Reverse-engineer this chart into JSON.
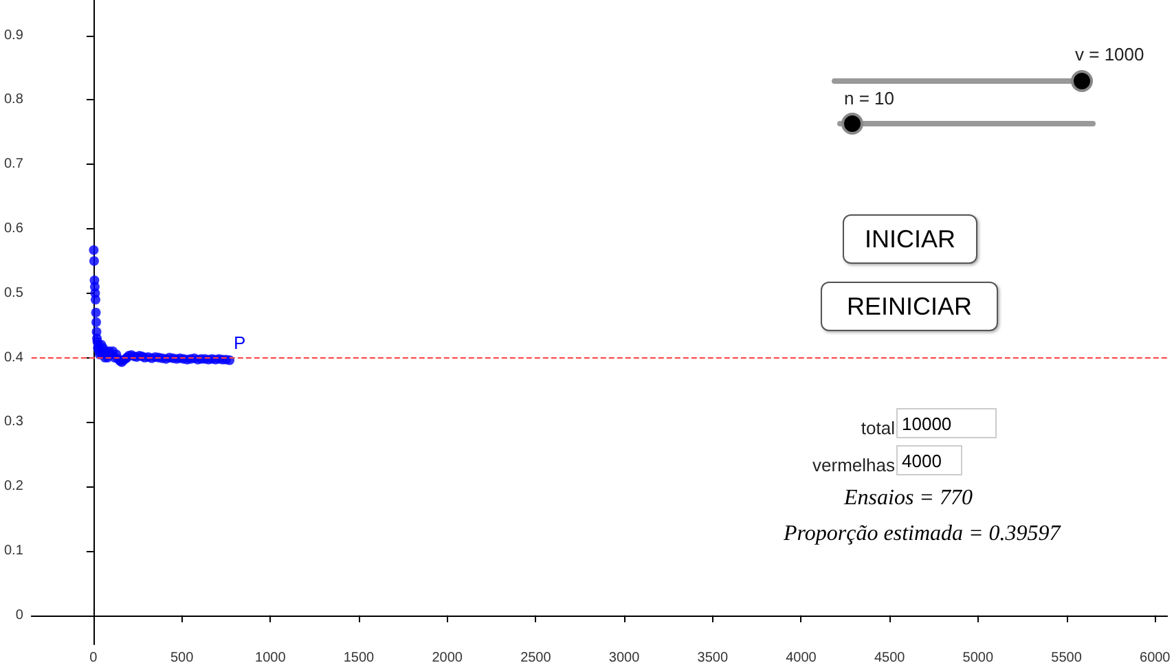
{
  "chart_data": {
    "type": "scatter",
    "color": "#0000ff",
    "marker": "circle",
    "grid": false,
    "x": [
      2,
      4,
      6,
      8,
      10,
      12,
      14,
      16,
      18,
      20,
      22,
      25,
      28,
      31,
      35,
      45,
      50,
      55,
      65,
      70,
      80,
      90,
      100,
      110,
      120,
      130,
      140,
      150,
      160,
      170,
      180,
      190,
      200,
      215,
      230,
      245,
      260,
      275,
      290,
      310,
      330,
      350,
      370,
      390,
      410,
      430,
      450,
      470,
      490,
      510,
      530,
      550,
      570,
      590,
      610,
      630,
      650,
      670,
      690,
      710,
      730,
      750,
      770
    ],
    "values": [
      0.567,
      0.55,
      0.52,
      0.51,
      0.5,
      0.49,
      0.47,
      0.455,
      0.44,
      0.43,
      0.425,
      0.415,
      0.42,
      0.41,
      0.405,
      0.42,
      0.405,
      0.415,
      0.4,
      0.41,
      0.4,
      0.41,
      0.405,
      0.41,
      0.4,
      0.405,
      0.398,
      0.395,
      0.393,
      0.396,
      0.398,
      0.4,
      0.403,
      0.404,
      0.402,
      0.401,
      0.403,
      0.402,
      0.4,
      0.401,
      0.399,
      0.401,
      0.4,
      0.399,
      0.398,
      0.4,
      0.399,
      0.398,
      0.399,
      0.398,
      0.397,
      0.398,
      0.399,
      0.397,
      0.398,
      0.398,
      0.397,
      0.398,
      0.397,
      0.398,
      0.397,
      0.397,
      0.396
    ],
    "xlim": [
      -350,
      6070
    ],
    "ylim": [
      -0.045,
      0.955
    ],
    "xticks": [
      0,
      500,
      1000,
      1500,
      2000,
      2500,
      3000,
      3500,
      4000,
      4500,
      5000,
      5500,
      6000
    ],
    "yticks": [
      0,
      0.1,
      0.2,
      0.3,
      0.4,
      0.5,
      0.6,
      0.7,
      0.8,
      0.9
    ],
    "ref_lines": [
      {
        "axis": "y",
        "value": 0.4,
        "color": "#ff4040",
        "line_style": "dashed"
      }
    ],
    "annotations": [
      "v = 1000",
      "n = 10",
      "INICIAR",
      "REINICIAR",
      "total",
      "10000",
      "vermelhas",
      "4000",
      "Ensaios = 770",
      "Proporção estimada = 0.39597",
      "P"
    ]
  }
}
